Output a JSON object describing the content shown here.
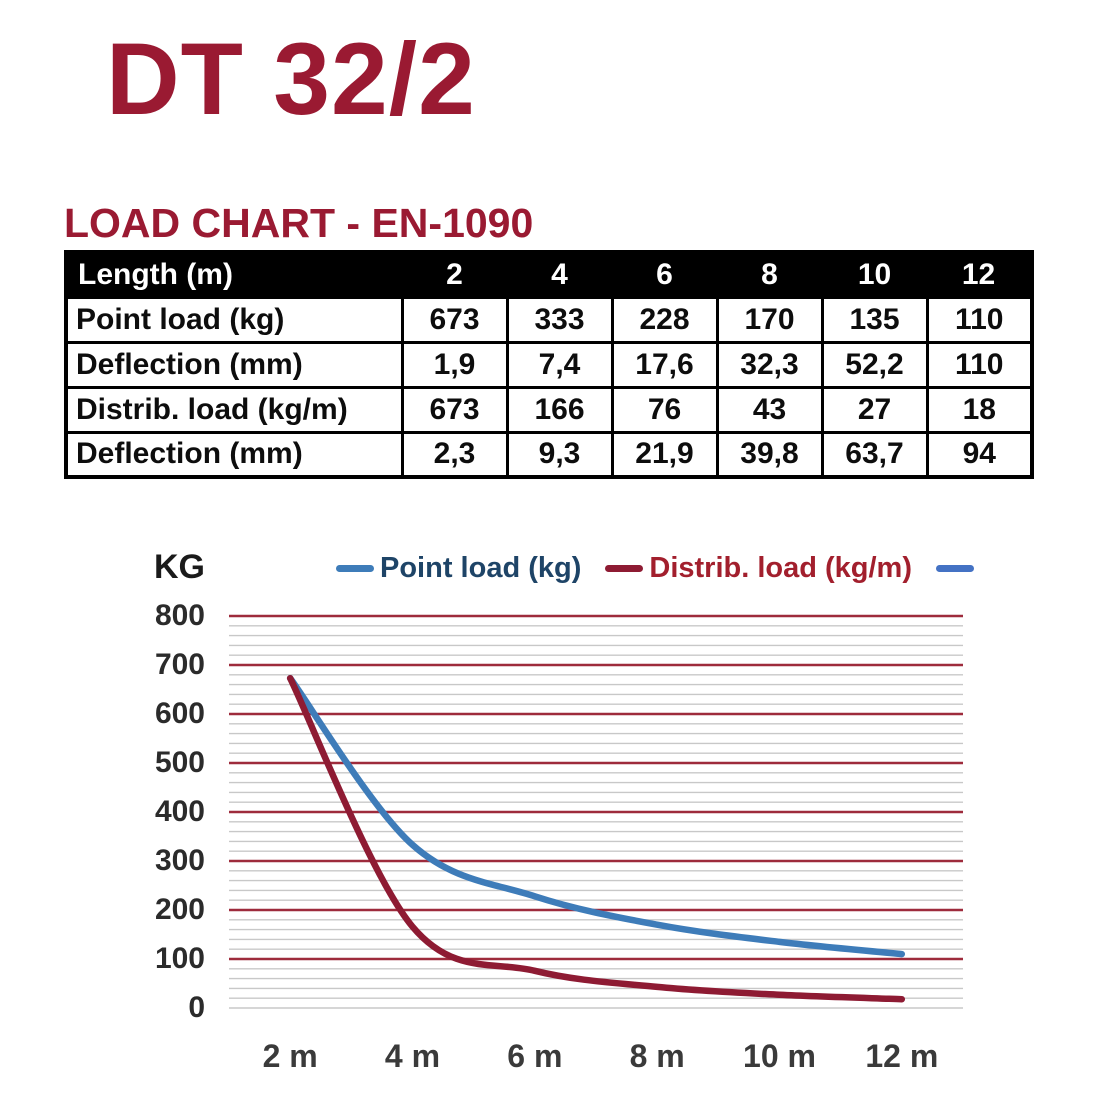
{
  "page": {
    "title": "DT 32/2",
    "subtitle": "LOAD CHART - EN-1090",
    "accent_color": "#9A1A32"
  },
  "table": {
    "header": [
      "Length (m)",
      "2",
      "4",
      "6",
      "8",
      "10",
      "12"
    ],
    "rows": [
      {
        "label": "Point load (kg)",
        "values": [
          "673",
          "333",
          "228",
          "170",
          "135",
          "110"
        ]
      },
      {
        "label": "Deflection (mm)",
        "values": [
          "1,9",
          "7,4",
          "17,6",
          "32,3",
          "52,2",
          "110"
        ]
      },
      {
        "label": "Distrib. load (kg/m)",
        "values": [
          "673",
          "166",
          "76",
          "43",
          "27",
          "18"
        ]
      },
      {
        "label": "Deflection (mm)",
        "values": [
          "2,3",
          "9,3",
          "21,9",
          "39,8",
          "63,7",
          "94"
        ]
      }
    ]
  },
  "chart_data": {
    "type": "line",
    "title": "",
    "ylabel": "KG",
    "xlabel": "",
    "ylim": [
      0,
      800
    ],
    "y_major_step": 100,
    "y_minor_step": 20,
    "grid": "on",
    "legend_position": "top",
    "x": [
      2,
      4,
      6,
      8,
      10,
      12
    ],
    "x_tick_labels": [
      "2 m",
      "4 m",
      "6 m",
      "8 m",
      "10 m",
      "12 m"
    ],
    "y_tick_labels": [
      "800",
      "700",
      "600",
      "500",
      "400",
      "300",
      "200",
      "100",
      "0"
    ],
    "series": [
      {
        "name": "Point load (kg)",
        "values": [
          673,
          333,
          228,
          170,
          135,
          110
        ],
        "line_color": "#3E7CB9",
        "label_color": "#1E4467"
      },
      {
        "name": "Distrib. load (kg/m)",
        "values": [
          673,
          166,
          76,
          43,
          27,
          18
        ],
        "line_color": "#8E1B33",
        "label_color": "#A21F2D"
      },
      {
        "name": "",
        "values": [],
        "line_color": "#4472C4",
        "label_color": "#4472C4"
      }
    ],
    "major_grid_color": "#9E2B3C",
    "minor_grid_color": "#C8C8C8",
    "zero_line_color": "#C8C8C8",
    "tick_label_color": "#2B2B2B"
  }
}
